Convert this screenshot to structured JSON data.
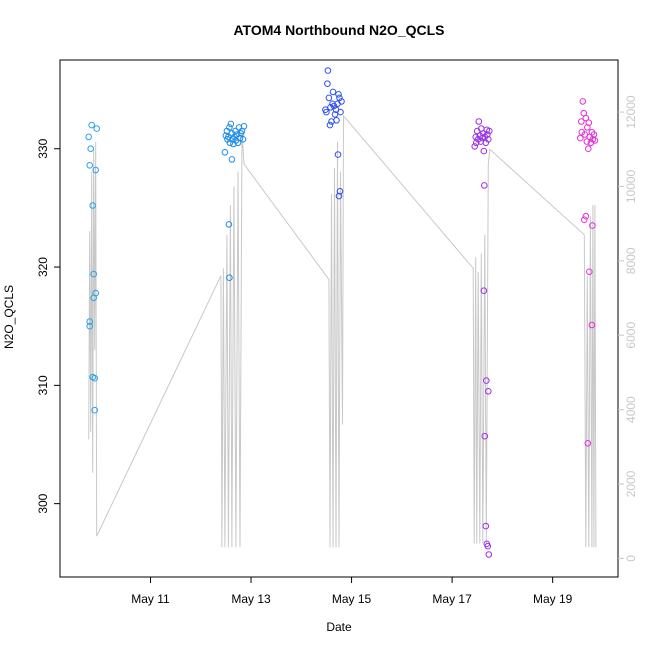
{
  "chart_data": {
    "type": "scatter",
    "title": "ATOM4 Northbound N2O_QCLS",
    "xlabel": "Date",
    "ylabel": "N2O_QCLS",
    "x_ticks": [
      "May 11",
      "May 13",
      "May 15",
      "May 17",
      "May 19"
    ],
    "x_tick_days": [
      11,
      13,
      15,
      17,
      19
    ],
    "xlim_days": [
      9.2,
      20.3
    ],
    "ylim": [
      293.8,
      337.5
    ],
    "y_ticks": [
      300,
      310,
      320,
      330
    ],
    "y2_ticks": [
      0,
      2000,
      4000,
      6000,
      8000,
      10000,
      12000
    ],
    "y2lim": [
      -500,
      13400
    ],
    "grid": false,
    "colors": {
      "series": [
        "#29a3e6",
        "#1f8ce8",
        "#2f4ff0",
        "#9a2fe8",
        "#e62fd8"
      ],
      "altitude_line": "#c8c8c8"
    },
    "series": [
      {
        "values": [
          [
            9.77,
            331.0
          ],
          [
            9.79,
            328.6
          ],
          [
            9.81,
            330.0
          ],
          [
            9.83,
            332.0
          ],
          [
            9.85,
            325.2
          ],
          [
            9.79,
            315.4
          ],
          [
            9.79,
            315.0
          ],
          [
            9.87,
            319.4
          ],
          [
            9.87,
            317.4
          ],
          [
            9.91,
            317.8
          ],
          [
            9.85,
            310.7
          ],
          [
            9.89,
            310.6
          ],
          [
            9.89,
            307.9
          ],
          [
            9.93,
            331.7
          ],
          [
            9.91,
            328.2
          ]
        ]
      },
      {
        "values": [
          [
            12.48,
            329.7
          ],
          [
            12.5,
            331.1
          ],
          [
            12.52,
            331.5
          ],
          [
            12.53,
            330.8
          ],
          [
            12.55,
            331.0
          ],
          [
            12.57,
            331.8
          ],
          [
            12.58,
            330.5
          ],
          [
            12.6,
            332.1
          ],
          [
            12.62,
            331.3
          ],
          [
            12.63,
            330.8
          ],
          [
            12.65,
            330.4
          ],
          [
            12.67,
            331.0
          ],
          [
            12.69,
            331.5
          ],
          [
            12.7,
            330.7
          ],
          [
            12.72,
            331.2
          ],
          [
            12.74,
            330.5
          ],
          [
            12.76,
            331.8
          ],
          [
            12.78,
            330.9
          ],
          [
            12.8,
            331.3
          ],
          [
            12.82,
            331.5
          ],
          [
            12.84,
            330.8
          ],
          [
            12.86,
            331.9
          ],
          [
            12.62,
            329.1
          ],
          [
            12.56,
            323.6
          ],
          [
            12.57,
            319.1
          ]
        ]
      },
      {
        "values": [
          [
            14.48,
            333.3
          ],
          [
            14.5,
            333.1
          ],
          [
            14.52,
            335.5
          ],
          [
            14.53,
            336.6
          ],
          [
            14.55,
            334.3
          ],
          [
            14.57,
            332.0
          ],
          [
            14.58,
            333.5
          ],
          [
            14.6,
            332.3
          ],
          [
            14.62,
            333.8
          ],
          [
            14.63,
            334.8
          ],
          [
            14.65,
            333.6
          ],
          [
            14.67,
            332.9
          ],
          [
            14.69,
            333.3
          ],
          [
            14.7,
            332.4
          ],
          [
            14.72,
            333.8
          ],
          [
            14.74,
            334.6
          ],
          [
            14.76,
            334.3
          ],
          [
            14.78,
            333.1
          ],
          [
            14.8,
            334.0
          ],
          [
            14.73,
            329.5
          ],
          [
            14.75,
            326.0
          ],
          [
            14.77,
            326.4
          ]
        ]
      },
      {
        "values": [
          [
            17.45,
            330.2
          ],
          [
            17.47,
            331.0
          ],
          [
            17.48,
            330.5
          ],
          [
            17.5,
            331.5
          ],
          [
            17.52,
            330.8
          ],
          [
            17.53,
            332.3
          ],
          [
            17.55,
            331.1
          ],
          [
            17.57,
            330.6
          ],
          [
            17.58,
            331.7
          ],
          [
            17.6,
            330.9
          ],
          [
            17.62,
            331.3
          ],
          [
            17.63,
            329.8
          ],
          [
            17.65,
            331.0
          ],
          [
            17.67,
            330.5
          ],
          [
            17.69,
            331.6
          ],
          [
            17.7,
            331.2
          ],
          [
            17.72,
            330.8
          ],
          [
            17.74,
            331.5
          ],
          [
            17.64,
            326.9
          ],
          [
            17.63,
            318.0
          ],
          [
            17.68,
            310.4
          ],
          [
            17.72,
            309.5
          ],
          [
            17.65,
            305.7
          ],
          [
            17.67,
            298.1
          ],
          [
            17.69,
            296.6
          ],
          [
            17.71,
            296.4
          ],
          [
            17.73,
            295.7
          ]
        ]
      },
      {
        "values": [
          [
            19.55,
            330.9
          ],
          [
            19.57,
            332.3
          ],
          [
            19.58,
            331.4
          ],
          [
            19.6,
            334.0
          ],
          [
            19.62,
            333.0
          ],
          [
            19.64,
            331.2
          ],
          [
            19.66,
            332.6
          ],
          [
            19.68,
            330.6
          ],
          [
            19.69,
            331.8
          ],
          [
            19.71,
            330.0
          ],
          [
            19.72,
            332.2
          ],
          [
            19.74,
            331.0
          ],
          [
            19.76,
            330.5
          ],
          [
            19.78,
            331.4
          ],
          [
            19.8,
            330.8
          ],
          [
            19.82,
            331.2
          ],
          [
            19.84,
            330.7
          ],
          [
            19.63,
            324.0
          ],
          [
            19.73,
            319.6
          ],
          [
            19.78,
            315.1
          ],
          [
            19.7,
            305.1
          ],
          [
            19.79,
            323.5
          ],
          [
            19.66,
            324.3
          ]
        ]
      }
    ],
    "altitude_line": {
      "axis": "right",
      "points": [
        [
          9.77,
          3200
        ],
        [
          9.79,
          8800
        ],
        [
          9.81,
          3400
        ],
        [
          9.83,
          10400
        ],
        [
          9.85,
          2300
        ],
        [
          9.87,
          11000
        ],
        [
          9.89,
          5600
        ],
        [
          9.91,
          11200
        ],
        [
          9.93,
          600
        ],
        [
          12.4,
          7600
        ],
        [
          12.42,
          300
        ],
        [
          12.45,
          7800
        ],
        [
          12.48,
          300
        ],
        [
          12.52,
          8700
        ],
        [
          12.55,
          300
        ],
        [
          12.59,
          9500
        ],
        [
          12.62,
          300
        ],
        [
          12.66,
          10000
        ],
        [
          12.7,
          300
        ],
        [
          12.74,
          10400
        ],
        [
          12.78,
          300
        ],
        [
          12.82,
          11500
        ],
        [
          12.86,
          10600
        ],
        [
          14.55,
          7500
        ],
        [
          14.57,
          300
        ],
        [
          14.6,
          9800
        ],
        [
          14.63,
          300
        ],
        [
          14.66,
          10500
        ],
        [
          14.69,
          300
        ],
        [
          14.72,
          11200
        ],
        [
          14.75,
          300
        ],
        [
          14.78,
          10400
        ],
        [
          14.82,
          3600
        ],
        [
          14.84,
          11900
        ],
        [
          17.42,
          7800
        ],
        [
          17.44,
          400
        ],
        [
          17.47,
          8100
        ],
        [
          17.49,
          400
        ],
        [
          17.52,
          7700
        ],
        [
          17.55,
          400
        ],
        [
          17.58,
          8200
        ],
        [
          17.61,
          400
        ],
        [
          17.65,
          8700
        ],
        [
          17.68,
          400
        ],
        [
          17.72,
          10600
        ],
        [
          17.75,
          11000
        ],
        [
          19.63,
          8700
        ],
        [
          19.66,
          300
        ],
        [
          19.69,
          7600
        ],
        [
          19.72,
          300
        ],
        [
          19.75,
          9200
        ],
        [
          19.78,
          300
        ],
        [
          19.8,
          9500
        ],
        [
          19.82,
          300
        ],
        [
          19.84,
          9500
        ],
        [
          19.86,
          300
        ]
      ]
    }
  }
}
